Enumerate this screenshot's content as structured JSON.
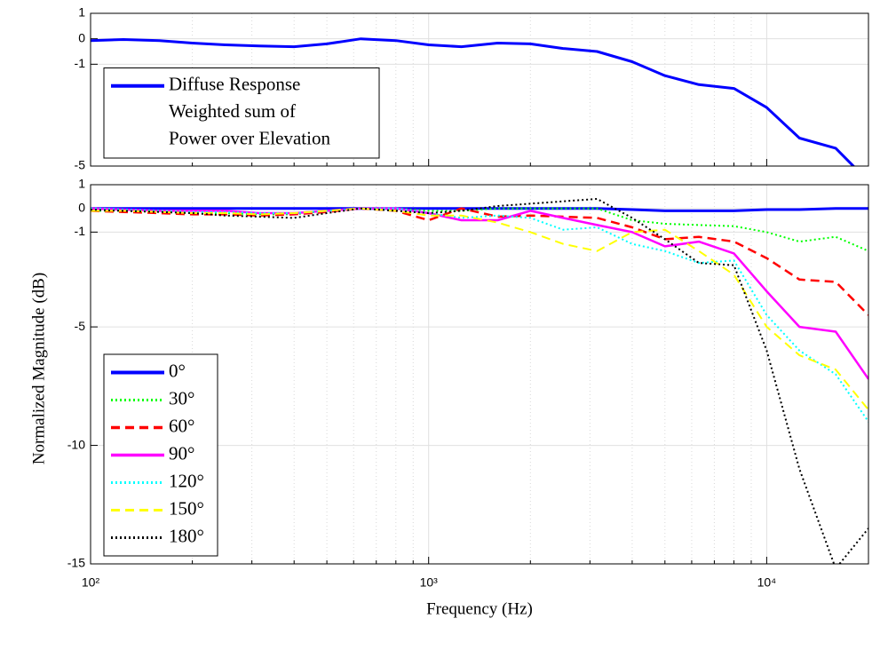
{
  "chart_data": [
    {
      "type": "line",
      "x": [
        100,
        125,
        160,
        200,
        250,
        315,
        400,
        500,
        630,
        800,
        1000,
        1250,
        1600,
        2000,
        2500,
        3150,
        4000,
        5000,
        6300,
        8000,
        10000,
        12500,
        16000,
        20000
      ],
      "xlim": [
        100,
        20000
      ],
      "xscale": "log",
      "xticks": [
        {
          "value": 100,
          "label": "10²"
        },
        {
          "value": 1000,
          "label": "10³"
        },
        {
          "value": 10000,
          "label": "10⁴"
        }
      ],
      "xminorticks": [
        200,
        300,
        400,
        500,
        600,
        700,
        800,
        900,
        2000,
        3000,
        4000,
        5000,
        6000,
        7000,
        8000,
        9000
      ],
      "ylim": [
        -5,
        1
      ],
      "yticks": [
        -5,
        -1,
        0,
        1
      ],
      "grid": true,
      "legend": "lower left",
      "series": [
        {
          "name": [
            "Diffuse Response",
            "Weighted sum of",
            "Power over Elevation"
          ],
          "color": "#0000ff",
          "dash": "solid",
          "width": 3,
          "values": [
            -0.07,
            -0.03,
            -0.07,
            -0.17,
            -0.24,
            -0.28,
            -0.31,
            -0.2,
            0,
            -0.07,
            -0.24,
            -0.31,
            -0.17,
            -0.2,
            -0.38,
            -0.5,
            -0.9,
            -1.45,
            -1.8,
            -1.95,
            -2.7,
            -3.9,
            -4.3,
            -5.6
          ]
        }
      ]
    },
    {
      "type": "line",
      "x": [
        100,
        125,
        160,
        200,
        250,
        315,
        400,
        500,
        630,
        800,
        1000,
        1250,
        1600,
        2000,
        2500,
        3150,
        4000,
        5000,
        6300,
        8000,
        10000,
        12500,
        16000,
        20000
      ],
      "xlim": [
        100,
        20000
      ],
      "xscale": "log",
      "xticks": [
        {
          "value": 100,
          "label": "10²"
        },
        {
          "value": 1000,
          "label": "10³"
        },
        {
          "value": 10000,
          "label": "10⁴"
        }
      ],
      "xminorticks": [
        200,
        300,
        400,
        500,
        600,
        700,
        800,
        900,
        2000,
        3000,
        4000,
        5000,
        6000,
        7000,
        8000,
        9000
      ],
      "ylim": [
        -15,
        1
      ],
      "yticks": [
        -15,
        -10,
        -5,
        -1,
        0,
        1
      ],
      "grid": true,
      "legend": "lower left",
      "xlabel": "Frequency (Hz)",
      "ylabel": "Normalized Magnitude (dB)",
      "series": [
        {
          "name": "0°",
          "color": "#0000ff",
          "dash": "solid",
          "width": 3,
          "values": [
            0,
            0,
            0,
            0,
            0,
            0,
            0,
            0,
            0,
            0,
            0,
            0,
            0,
            0,
            0,
            0,
            -0.05,
            -0.1,
            -0.1,
            -0.1,
            -0.05,
            -0.05,
            0,
            0
          ]
        },
        {
          "name": "30°",
          "color": "#00ff00",
          "dash": "dotted",
          "width": 2,
          "values": [
            -0.1,
            -0.1,
            -0.15,
            -0.2,
            -0.2,
            -0.25,
            -0.25,
            -0.1,
            0,
            0,
            -0.1,
            -0.1,
            0,
            0,
            0,
            0,
            -0.5,
            -0.65,
            -0.7,
            -0.75,
            -1,
            -1.4,
            -1.2,
            -1.8
          ]
        },
        {
          "name": "60°",
          "color": "#ff0000",
          "dash": "dashed",
          "width": 2.5,
          "values": [
            -0.1,
            -0.15,
            -0.2,
            -0.25,
            -0.25,
            -0.3,
            -0.25,
            -0.15,
            0,
            -0.1,
            -0.5,
            0,
            -0.35,
            -0.3,
            -0.35,
            -0.4,
            -0.8,
            -1.3,
            -1.2,
            -1.4,
            -2.1,
            -3,
            -3.1,
            -4.5
          ]
        },
        {
          "name": "90°",
          "color": "#ff00ff",
          "dash": "solid",
          "width": 2.5,
          "values": [
            0,
            -0.05,
            -0.1,
            -0.1,
            -0.1,
            -0.2,
            -0.2,
            -0.1,
            0,
            0,
            -0.2,
            -0.5,
            -0.5,
            -0.1,
            -0.4,
            -0.7,
            -1,
            -1.6,
            -1.4,
            -1.9,
            -3.5,
            -5,
            -5.2,
            -7.2
          ]
        },
        {
          "name": "120°",
          "color": "#00ffff",
          "dash": "dotted",
          "width": 2,
          "values": [
            0,
            -0.05,
            -0.1,
            -0.15,
            -0.15,
            -0.2,
            -0.2,
            -0.1,
            0,
            0,
            -0.2,
            -0.4,
            -0.3,
            -0.4,
            -0.9,
            -0.8,
            -1.5,
            -1.8,
            -2.3,
            -2.2,
            -4.5,
            -6,
            -7,
            -9
          ]
        },
        {
          "name": "150°",
          "color": "#ffff00",
          "dash": "dashed",
          "width": 2,
          "values": [
            -0.1,
            -0.1,
            -0.15,
            -0.2,
            -0.2,
            -0.25,
            -0.2,
            -0.1,
            0,
            -0.1,
            -0.3,
            -0.3,
            -0.6,
            -1,
            -1.5,
            -1.8,
            -1,
            -0.9,
            -1.8,
            -2.8,
            -5,
            -6.2,
            -6.8,
            -8.5
          ]
        },
        {
          "name": "180°",
          "color": "#000000",
          "dash": "dotted",
          "width": 2,
          "values": [
            -0.05,
            -0.1,
            -0.15,
            -0.2,
            -0.3,
            -0.35,
            -0.4,
            -0.2,
            0,
            -0.1,
            -0.2,
            -0.1,
            0.1,
            0.2,
            0.3,
            0.4,
            -0.4,
            -1.3,
            -2.3,
            -2.4,
            -6,
            -11,
            -15.2,
            -13.5
          ]
        }
      ]
    }
  ]
}
